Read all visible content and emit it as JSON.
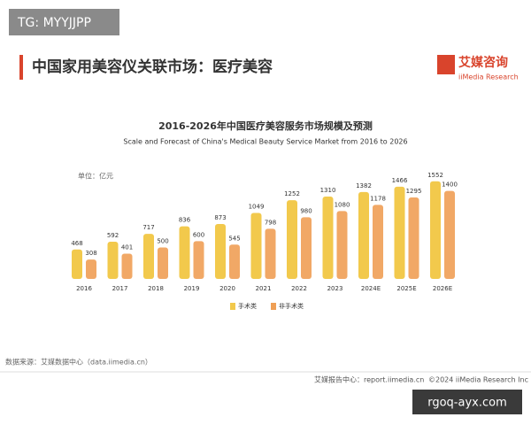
{
  "page": {
    "watermark_top": "TG: MYYJJPP",
    "header": "中国家用美容仪关联市场：医疗美容",
    "logo": "艾媒咨询",
    "logo_sub": "iiMedia Research",
    "unit": "单位：亿元",
    "source": "数据来源：艾媒数据中心（data.iimedia.cn）",
    "footer_left": "艾媒报告中心：report.iimedia.cn",
    "footer_right": "©2024 iiMedia Research Inc",
    "watermark_bottom": "rgoq-ayx.com"
  },
  "chart_data": {
    "type": "bar",
    "title": "2016-2026年中国医疗美容服务市场规模及预测",
    "subtitle": "Scale and Forecast of China's Medical Beauty Service Market from 2016 to 2026",
    "categories": [
      "2016",
      "2017",
      "2018",
      "2019",
      "2020",
      "2021",
      "2022",
      "2023",
      "2024E",
      "2025E",
      "2026E"
    ],
    "series": [
      {
        "name": "手术类",
        "color": "#f2c94c",
        "values": [
          468,
          592,
          717,
          836,
          873,
          1049,
          1252,
          1310,
          1382,
          1466,
          1552
        ]
      },
      {
        "name": "非手术类",
        "color": "#ef9f55",
        "values": [
          308,
          401,
          500,
          600,
          545,
          798,
          980,
          1080,
          1178,
          1295,
          1400
        ]
      }
    ]
  }
}
